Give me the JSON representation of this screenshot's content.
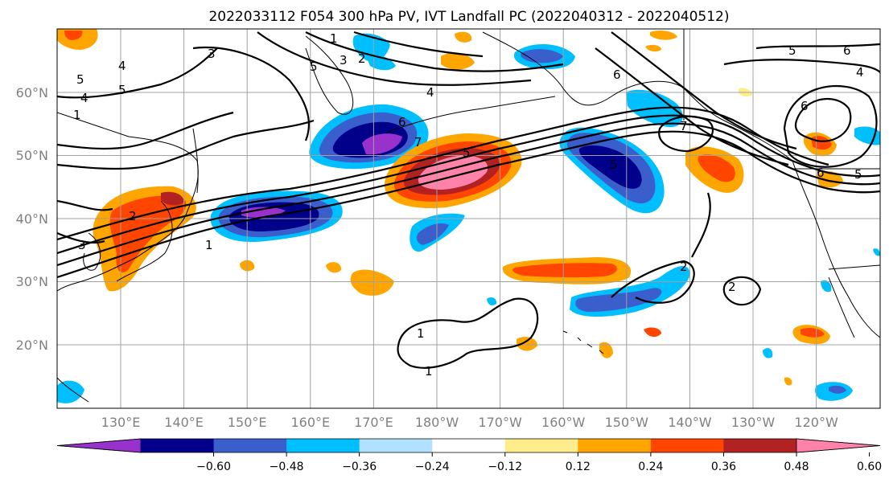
{
  "title": "2022033112 F054 300 hPa PV, IVT Landfall PC (2022040312 - 2022040512)",
  "lat_labels": [
    "60°N",
    "50°N",
    "40°N",
    "30°N",
    "20°N"
  ],
  "lon_labels": [
    "130°E",
    "140°E",
    "150°E",
    "160°E",
    "170°E",
    "180°W",
    "170°W",
    "160°W",
    "150°W",
    "140°W",
    "130°W",
    "120°W"
  ],
  "colorbar": {
    "ticks": [
      "−0.60",
      "−0.48",
      "−0.36",
      "−0.24",
      "−0.12",
      "0.12",
      "0.24",
      "0.36",
      "0.48",
      "0.60"
    ],
    "colors": [
      "#9932cc",
      "#00008b",
      "#3a5fcd",
      "#00bfff",
      "#b0e2ff",
      "#ffffff",
      "#ffec8b",
      "#ffa500",
      "#ff4500",
      "#b22222",
      "#ff82ab"
    ],
    "extend": "both"
  },
  "contour_labels": [
    "1",
    "2",
    "3",
    "4",
    "5",
    "6",
    "7"
  ],
  "colors": {
    "grid": "#a0a0a0",
    "coast": "#000000",
    "axis_text": "#808080"
  }
}
